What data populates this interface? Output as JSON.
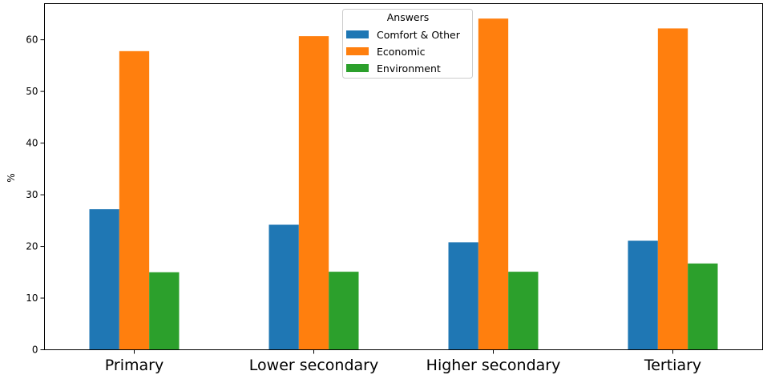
{
  "chart_data": {
    "type": "bar",
    "ylabel": "%",
    "xlabel": "",
    "ylim": [
      0,
      67
    ],
    "yticks": [
      0,
      10,
      20,
      30,
      40,
      50,
      60
    ],
    "categories": [
      "Primary",
      "Lower secondary",
      "Higher secondary",
      "Tertiary"
    ],
    "legend": {
      "title": "Answers",
      "placement": "top-center"
    },
    "grid": false,
    "series": [
      {
        "name": "Comfort & Other",
        "color": "#1f77b4",
        "values": [
          27.2,
          24.2,
          20.8,
          21.1
        ]
      },
      {
        "name": "Economic",
        "color": "#ff7f0e",
        "values": [
          57.8,
          60.7,
          64.1,
          62.2
        ]
      },
      {
        "name": "Environment",
        "color": "#2ca02c",
        "values": [
          15.0,
          15.1,
          15.1,
          16.7
        ]
      }
    ]
  }
}
